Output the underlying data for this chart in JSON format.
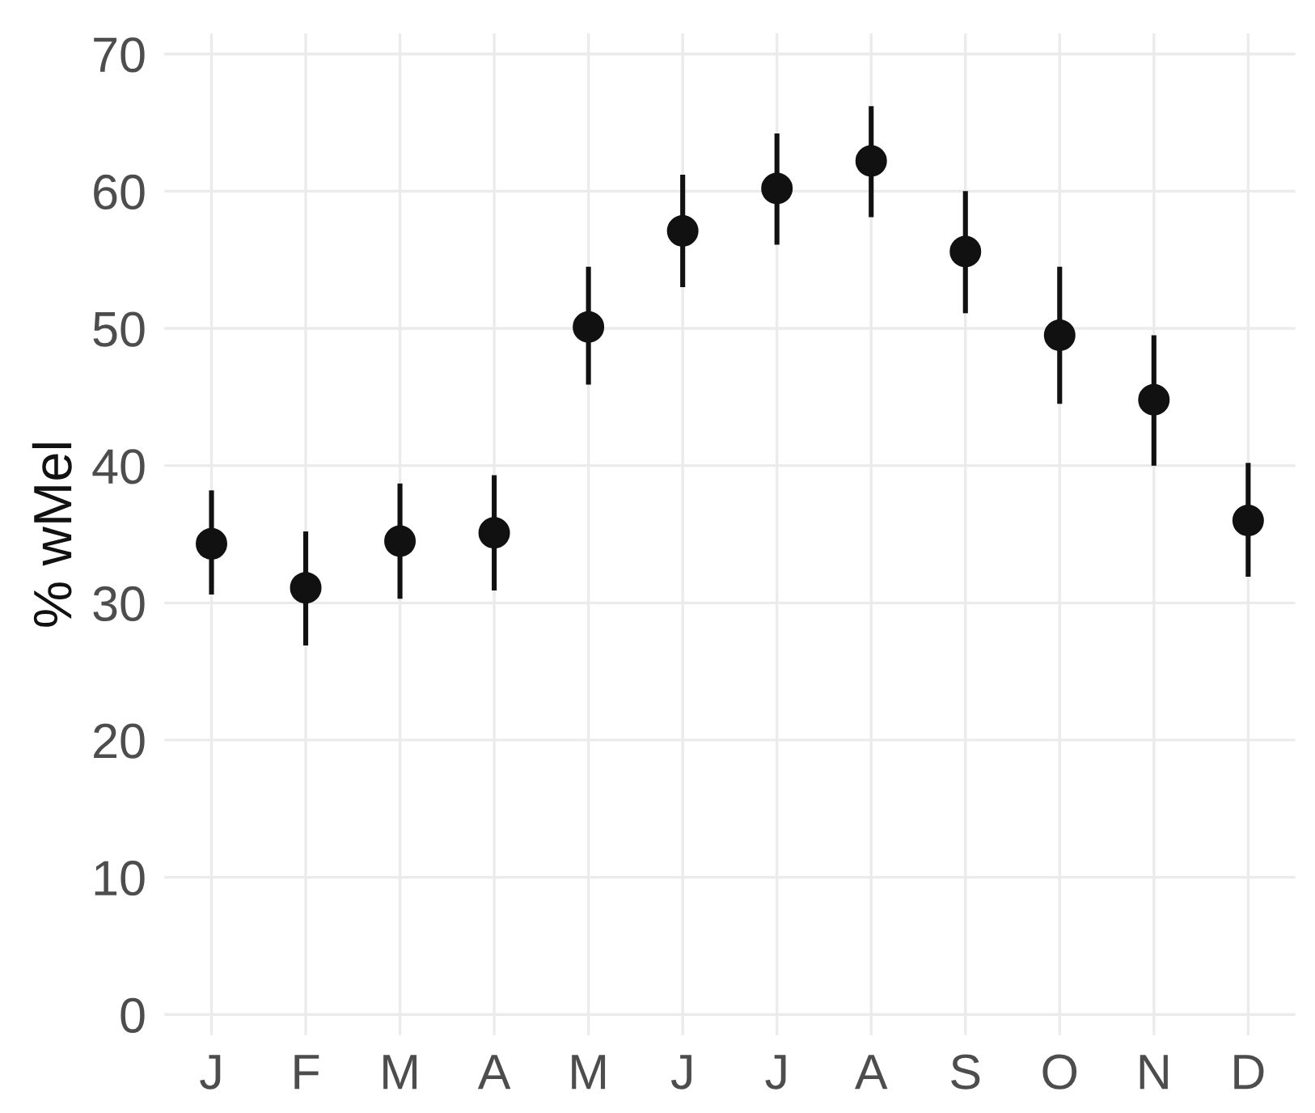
{
  "chart_data": {
    "type": "scatter",
    "ylabel": "% wMel",
    "categories": [
      "J",
      "F",
      "M",
      "A",
      "M",
      "J",
      "J",
      "A",
      "S",
      "O",
      "N",
      "D"
    ],
    "values": [
      34.3,
      31.1,
      34.5,
      35.1,
      50.1,
      57.1,
      60.2,
      62.2,
      55.6,
      49.5,
      44.8,
      36.0
    ],
    "errors": [
      [
        30.6,
        38.2
      ],
      [
        26.9,
        35.2
      ],
      [
        30.3,
        38.7
      ],
      [
        30.9,
        39.3
      ],
      [
        45.9,
        54.5
      ],
      [
        53.0,
        61.2
      ],
      [
        56.1,
        64.2
      ],
      [
        58.1,
        66.2
      ],
      [
        51.1,
        60.0
      ],
      [
        44.5,
        54.5
      ],
      [
        40.0,
        49.5
      ],
      [
        31.9,
        40.2
      ]
    ],
    "color": "#111111",
    "marker": "circle",
    "ylim": [
      -1.5,
      71.5
    ],
    "yticks": [
      0,
      10,
      20,
      30,
      40,
      50,
      60,
      70
    ],
    "grid": true
  }
}
